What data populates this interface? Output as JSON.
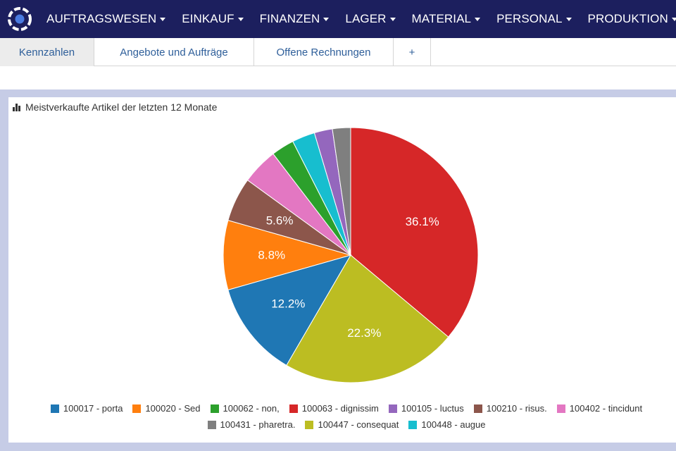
{
  "nav": {
    "items": [
      {
        "label": "AUFTRAGSWESEN"
      },
      {
        "label": "EINKAUF"
      },
      {
        "label": "FINANZEN"
      },
      {
        "label": "LAGER"
      },
      {
        "label": "MATERIAL"
      },
      {
        "label": "PERSONAL"
      },
      {
        "label": "PRODUKTION"
      }
    ]
  },
  "tabs": [
    {
      "label": "Kennzahlen",
      "active": true
    },
    {
      "label": "Angebote und Aufträge",
      "active": false
    },
    {
      "label": "Offene Rechnungen",
      "active": false
    },
    {
      "label": "+",
      "active": false
    }
  ],
  "widget": {
    "title": "Meistverkaufte Artikel der letzten 12 Monate"
  },
  "chart_data": {
    "type": "pie",
    "title": "Meistverkaufte Artikel der letzten 12 Monate",
    "slices": [
      {
        "label": "100063 - dignissim",
        "value": 36.1,
        "color": "#d62728",
        "show_label": true
      },
      {
        "label": "100447 - consequat",
        "value": 22.3,
        "color": "#bcbd22",
        "show_label": true
      },
      {
        "label": "100017 - porta",
        "value": 12.2,
        "color": "#1f77b4",
        "show_label": true
      },
      {
        "label": "100020 - Sed",
        "value": 8.8,
        "color": "#ff7f0e",
        "show_label": true
      },
      {
        "label": "100210 - risus.",
        "value": 5.6,
        "color": "#8c564b",
        "show_label": true
      },
      {
        "label": "100402 - tincidunt",
        "value": 4.6,
        "color": "#e377c2",
        "show_label": false
      },
      {
        "label": "100062 - non,",
        "value": 2.9,
        "color": "#2ca02c",
        "show_label": false
      },
      {
        "label": "100448 - augue",
        "value": 2.9,
        "color": "#17becf",
        "show_label": false
      },
      {
        "label": "100105 - luctus",
        "value": 2.3,
        "color": "#9467bd",
        "show_label": false
      },
      {
        "label": "100431 - pharetra.",
        "value": 2.3,
        "color": "#7f7f7f",
        "show_label": false
      }
    ],
    "legend": {
      "position": "bottom",
      "rows": [
        [
          {
            "label": "100017 - porta",
            "color": "#1f77b4"
          },
          {
            "label": "100020 - Sed",
            "color": "#ff7f0e"
          },
          {
            "label": "100062 - non,",
            "color": "#2ca02c"
          },
          {
            "label": "100063 - dignissim",
            "color": "#d62728"
          },
          {
            "label": "100105 - luctus",
            "color": "#9467bd"
          },
          {
            "label": "100210 - risus.",
            "color": "#8c564b"
          },
          {
            "label": "100402 - tincidunt",
            "color": "#e377c2"
          }
        ],
        [
          {
            "label": "100431 - pharetra.",
            "color": "#7f7f7f"
          },
          {
            "label": "100447 - consequat",
            "color": "#bcbd22"
          },
          {
            "label": "100448 - augue",
            "color": "#17becf"
          }
        ]
      ]
    }
  }
}
